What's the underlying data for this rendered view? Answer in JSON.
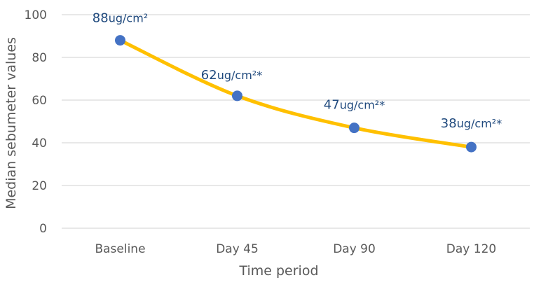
{
  "chart_data": {
    "type": "line",
    "title": "",
    "xlabel": "Time period",
    "ylabel": "Median sebumeter values",
    "categories": [
      "Baseline",
      "Day 45",
      "Day 90",
      "Day 120"
    ],
    "series": [
      {
        "values": [
          88,
          62,
          47,
          38
        ],
        "data_labels": [
          {
            "value": "88",
            "unit": "ug/cm²"
          },
          {
            "value": "62",
            "unit": "ug/cm²*"
          },
          {
            "value": "47",
            "unit": "ug/cm²*"
          },
          {
            "value": "38",
            "unit": "ug/cm²*"
          }
        ],
        "line_color": "#FFC000",
        "marker_color": "#4472C4",
        "smoothed": true
      }
    ],
    "ylim": [
      0,
      100
    ],
    "yticks": [
      "0",
      "20",
      "40",
      "60",
      "80",
      "100"
    ],
    "grid": true,
    "legend": "none",
    "label_color": "#1F497D"
  }
}
